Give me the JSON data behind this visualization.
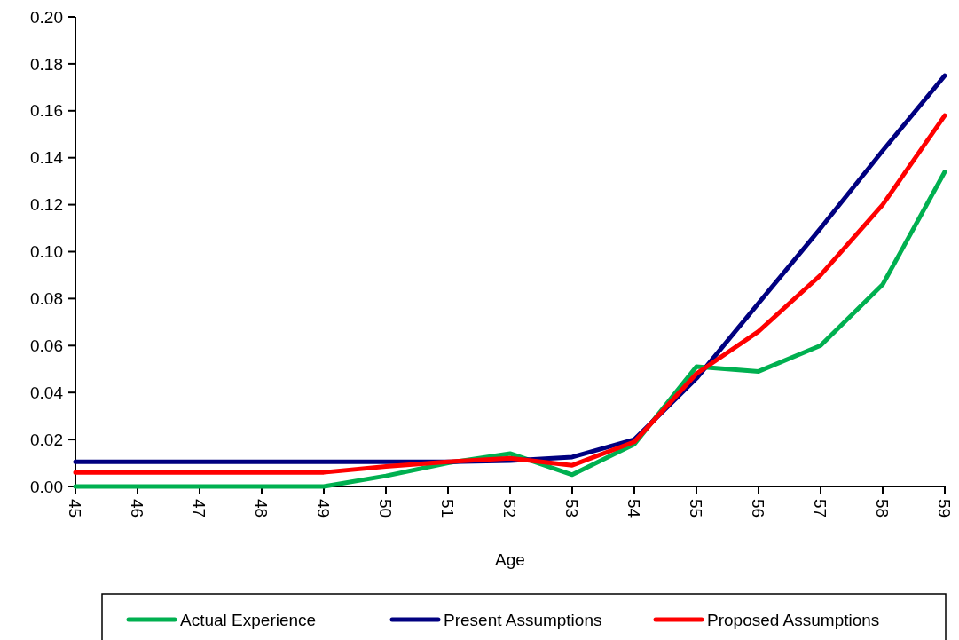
{
  "chart_data": {
    "type": "line",
    "xlabel": "Age",
    "x": [
      45,
      46,
      47,
      48,
      49,
      50,
      51,
      52,
      53,
      54,
      55,
      56,
      57,
      58,
      59
    ],
    "xlim": [
      45,
      59
    ],
    "xticks": [
      45,
      46,
      47,
      48,
      49,
      50,
      51,
      52,
      53,
      54,
      55,
      56,
      57,
      58,
      59
    ],
    "ylim": [
      0,
      0.2
    ],
    "yticks": [
      {
        "value": 0,
        "label": "0.00"
      },
      {
        "value": 0.02,
        "label": "0.02"
      },
      {
        "value": 0.04,
        "label": "0.04"
      },
      {
        "value": 0.06,
        "label": "0.06"
      },
      {
        "value": 0.08,
        "label": "0.08"
      },
      {
        "value": 0.1,
        "label": "0.10"
      },
      {
        "value": 0.12,
        "label": "0.12"
      },
      {
        "value": 0.14,
        "label": "0.14"
      },
      {
        "value": 0.16,
        "label": "0.16"
      },
      {
        "value": 0.18,
        "label": "0.18"
      },
      {
        "value": 0.2,
        "label": "0.20"
      }
    ],
    "grid": false,
    "legend": "bottom",
    "marker": "none",
    "line_style": "solid",
    "series": [
      {
        "name": "Actual Experience",
        "color": "#00b050",
        "values": [
          0,
          0,
          0,
          0,
          0,
          0.0045,
          0.01,
          0.014,
          0.005,
          0.018,
          0.051,
          0.049,
          0.06,
          0.086,
          0.134
        ]
      },
      {
        "name": "Present Assumptions",
        "color": "#000080",
        "values": [
          0.0105,
          0.0105,
          0.0105,
          0.0105,
          0.0105,
          0.0105,
          0.0105,
          0.011,
          0.0125,
          0.02,
          0.046,
          0.078,
          0.11,
          0.143,
          0.175
        ]
      },
      {
        "name": "Proposed Assumptions",
        "color": "#ff0000",
        "values": [
          0.006,
          0.006,
          0.006,
          0.006,
          0.006,
          0.0085,
          0.0105,
          0.012,
          0.009,
          0.019,
          0.048,
          0.066,
          0.09,
          0.12,
          0.158
        ]
      }
    ]
  }
}
